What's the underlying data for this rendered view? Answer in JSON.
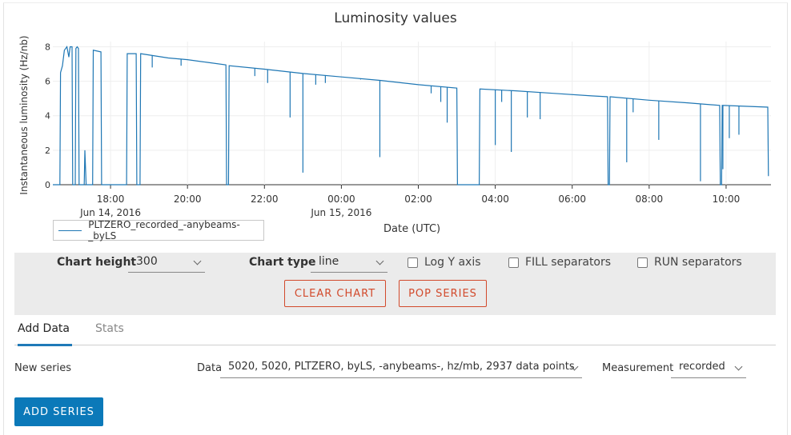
{
  "chart_title": "Luminosity values",
  "colors": {
    "series": "#1f77b4",
    "accent_blue": "#0b79b9",
    "accent_red": "#d24a2c",
    "panel": "#ebebeb"
  },
  "chart_data": {
    "type": "line",
    "title": "Luminosity values",
    "xlabel": "Date (UTC)",
    "ylabel": "Instantaneous luminosity (Hz/nb)",
    "ylim": [
      0,
      8.3
    ],
    "y_ticks": [
      "0",
      "2",
      "4",
      "6",
      "8"
    ],
    "x_range": [
      "2016-06-14T16:30",
      "2016-06-15T11:10"
    ],
    "x_ticks": [
      {
        "time": "2016-06-14T18:00",
        "label": "18:00",
        "date_label": "Jun 14, 2016"
      },
      {
        "time": "2016-06-14T20:00",
        "label": "20:00",
        "date_label": ""
      },
      {
        "time": "2016-06-14T22:00",
        "label": "22:00",
        "date_label": ""
      },
      {
        "time": "2016-06-15T00:00",
        "label": "00:00",
        "date_label": "Jun 15, 2016"
      },
      {
        "time": "2016-06-15T02:00",
        "label": "02:00",
        "date_label": ""
      },
      {
        "time": "2016-06-15T04:00",
        "label": "04:00",
        "date_label": ""
      },
      {
        "time": "2016-06-15T06:00",
        "label": "06:00",
        "date_label": ""
      },
      {
        "time": "2016-06-15T08:00",
        "label": "08:00",
        "date_label": ""
      },
      {
        "time": "2016-06-15T10:00",
        "label": "10:00",
        "date_label": ""
      }
    ],
    "grid": true,
    "legend": "bottom-left",
    "series": [
      {
        "name": "PLTZERO_recorded_-anybeams-_byLS",
        "points": [
          [
            "2016-06-14T16:30",
            0
          ],
          [
            "2016-06-14T16:41",
            0
          ],
          [
            "2016-06-14T16:42",
            6.5
          ],
          [
            "2016-06-14T16:45",
            6.9
          ],
          [
            "2016-06-14T16:48",
            7.8
          ],
          [
            "2016-06-14T16:52",
            8.0
          ],
          [
            "2016-06-14T16:55",
            7.4
          ],
          [
            "2016-06-14T16:57",
            8.0
          ],
          [
            "2016-06-14T17:00",
            8.0
          ],
          [
            "2016-06-14T17:01",
            0
          ],
          [
            "2016-06-14T17:05",
            0
          ],
          [
            "2016-06-14T17:06",
            7.9
          ],
          [
            "2016-06-14T17:08",
            8.0
          ],
          [
            "2016-06-14T17:10",
            7.9
          ],
          [
            "2016-06-14T17:11",
            0
          ],
          [
            "2016-06-14T17:19",
            0
          ],
          [
            "2016-06-14T17:20",
            2.0
          ],
          [
            "2016-06-14T17:22",
            0
          ],
          [
            "2016-06-14T17:32",
            0
          ],
          [
            "2016-06-14T17:33",
            7.8
          ],
          [
            "2016-06-14T17:45",
            7.7
          ],
          [
            "2016-06-14T17:46",
            0
          ],
          [
            "2016-06-14T18:25",
            0
          ],
          [
            "2016-06-14T18:26",
            7.6
          ],
          [
            "2016-06-14T18:40",
            7.6
          ],
          [
            "2016-06-14T18:41",
            0
          ],
          [
            "2016-06-14T18:46",
            0
          ],
          [
            "2016-06-14T18:47",
            7.6
          ],
          [
            "2016-06-14T19:30",
            7.35
          ],
          [
            "2016-06-14T20:00",
            7.25
          ],
          [
            "2016-06-14T20:30",
            7.1
          ],
          [
            "2016-06-14T21:00",
            6.95
          ],
          [
            "2016-06-14T21:01",
            0
          ],
          [
            "2016-06-14T21:04",
            0
          ],
          [
            "2016-06-14T21:05",
            6.9
          ],
          [
            "2016-06-14T22:00",
            6.7
          ],
          [
            "2016-06-14T23:00",
            6.45
          ],
          [
            "2016-06-15T00:00",
            6.25
          ],
          [
            "2016-06-15T01:00",
            6.05
          ],
          [
            "2016-06-15T02:00",
            5.8
          ],
          [
            "2016-06-15T03:00",
            5.6
          ],
          [
            "2016-06-15T03:01",
            0
          ],
          [
            "2016-06-15T03:35",
            0
          ],
          [
            "2016-06-15T03:36",
            5.55
          ],
          [
            "2016-06-15T04:30",
            5.45
          ],
          [
            "2016-06-15T05:30",
            5.3
          ],
          [
            "2016-06-15T06:30",
            5.15
          ],
          [
            "2016-06-15T06:55",
            5.1
          ],
          [
            "2016-06-15T06:56",
            0
          ],
          [
            "2016-06-15T06:58",
            0
          ],
          [
            "2016-06-15T06:59",
            5.1
          ],
          [
            "2016-06-15T08:00",
            4.9
          ],
          [
            "2016-06-15T09:00",
            4.75
          ],
          [
            "2016-06-15T09:50",
            4.6
          ],
          [
            "2016-06-15T09:51",
            0
          ],
          [
            "2016-06-15T09:53",
            0
          ],
          [
            "2016-06-15T09:54",
            4.6
          ],
          [
            "2016-06-15T11:05",
            4.5
          ],
          [
            "2016-06-15T11:06",
            0.5
          ]
        ],
        "dips": [
          [
            "2016-06-14T19:05",
            6.8
          ],
          [
            "2016-06-14T19:50",
            6.9
          ],
          [
            "2016-06-14T21:45",
            6.3
          ],
          [
            "2016-06-14T22:05",
            5.9
          ],
          [
            "2016-06-14T22:40",
            3.9
          ],
          [
            "2016-06-14T23:00",
            0.7
          ],
          [
            "2016-06-14T23:20",
            5.8
          ],
          [
            "2016-06-14T23:35",
            5.9
          ],
          [
            "2016-06-15T00:30",
            6.1
          ],
          [
            "2016-06-15T01:00",
            1.6
          ],
          [
            "2016-06-15T02:20",
            5.3
          ],
          [
            "2016-06-15T02:35",
            4.8
          ],
          [
            "2016-06-15T02:45",
            3.6
          ],
          [
            "2016-06-15T04:00",
            2.3
          ],
          [
            "2016-06-15T04:10",
            4.8
          ],
          [
            "2016-06-15T04:25",
            1.9
          ],
          [
            "2016-06-15T04:50",
            3.9
          ],
          [
            "2016-06-15T05:10",
            3.8
          ],
          [
            "2016-06-15T07:25",
            1.3
          ],
          [
            "2016-06-15T07:35",
            4.2
          ],
          [
            "2016-06-15T08:15",
            2.6
          ],
          [
            "2016-06-15T09:20",
            0.2
          ],
          [
            "2016-06-15T09:55",
            0.9
          ],
          [
            "2016-06-15T10:05",
            2.7
          ],
          [
            "2016-06-15T10:20",
            2.9
          ]
        ]
      }
    ]
  },
  "legend": {
    "label": "PLTZERO_recorded_-anybeams-_byLS"
  },
  "controls": {
    "chart_height_label": "Chart height",
    "chart_height_value": "300",
    "chart_type_label": "Chart type",
    "chart_type_value": "line",
    "log_y_label": "Log Y axis",
    "fill_sep_label": "FILL separators",
    "run_sep_label": "RUN separators",
    "clear_label": "CLEAR CHART",
    "pop_label": "POP SERIES"
  },
  "tabs": {
    "add_data": "Add Data",
    "stats": "Stats"
  },
  "form": {
    "new_series_label": "New series",
    "data_label": "Data",
    "data_value": "5020, 5020, PLTZERO, byLS, -anybeams-, hz/mb, 2937 data points",
    "measurement_label": "Measurement",
    "measurement_value": "recorded",
    "add_series_label": "ADD SERIES"
  }
}
